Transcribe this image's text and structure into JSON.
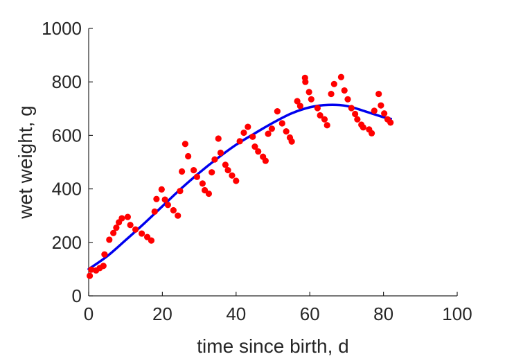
{
  "chart_data": {
    "type": "scatter",
    "title": "",
    "xlabel": "time since birth, d",
    "ylabel": "wet weight, g",
    "xlim": [
      0,
      100
    ],
    "ylim": [
      0,
      1000
    ],
    "xticks": [
      0,
      20,
      40,
      60,
      80,
      100
    ],
    "yticks": [
      0,
      200,
      400,
      600,
      800,
      1000
    ],
    "grid": false,
    "legend": "none",
    "series": [
      {
        "kind": "scatter",
        "color": "#ff0000",
        "x": [
          0.3,
          0.7,
          2,
          3,
          4,
          4.3,
          5.6,
          6.7,
          7.5,
          8.2,
          9,
          10.6,
          11.3,
          12.7,
          14.4,
          15.9,
          17,
          17.9,
          18.4,
          19.8,
          20.7,
          21.5,
          23,
          24.2,
          24.8,
          25.3,
          26.2,
          27,
          28.5,
          29.4,
          30.9,
          31.5,
          32.6,
          33.4,
          34.2,
          35.2,
          35.8,
          37.1,
          37.8,
          38.9,
          40,
          41,
          42.1,
          43.2,
          44.5,
          45.1,
          46,
          47.3,
          48,
          48.7,
          49.7,
          51.2,
          52.5,
          53.6,
          54.6,
          55.1,
          56.6,
          57.4,
          58.7,
          58.8,
          59.8,
          60.4,
          62.1,
          62.8,
          64,
          64.7,
          65.8,
          66.6,
          68.5,
          69.4,
          70.3,
          71.3,
          72.3,
          72.9,
          74,
          74.5,
          76.1,
          76.8,
          77.5,
          78.7,
          79.3,
          80.2,
          81.1,
          81.9
        ],
        "y": [
          75,
          98,
          95,
          104,
          112,
          155,
          210,
          235,
          255,
          275,
          290,
          295,
          265,
          248,
          233,
          220,
          207,
          315,
          362,
          398,
          360,
          340,
          320,
          300,
          392,
          465,
          568,
          522,
          470,
          445,
          420,
          395,
          382,
          462,
          510,
          588,
          535,
          490,
          470,
          450,
          430,
          578,
          610,
          632,
          595,
          558,
          540,
          520,
          505,
          606,
          625,
          690,
          645,
          615,
          592,
          577,
          728,
          710,
          815,
          800,
          762,
          735,
          702,
          675,
          660,
          638,
          755,
          792,
          818,
          768,
          735,
          702,
          680,
          660,
          640,
          630,
          622,
          608,
          692,
          755,
          712,
          682,
          660,
          648
        ]
      },
      {
        "kind": "line",
        "color": "#0000ee",
        "x": [
          0,
          5,
          10,
          15,
          20,
          25,
          30,
          35,
          40,
          45,
          50,
          55,
          60,
          65,
          70,
          75,
          80,
          82
        ],
        "y": [
          100,
          148,
          208,
          270,
          335,
          400,
          460,
          515,
          565,
          607,
          647,
          682,
          705,
          714,
          710,
          690,
          668,
          662
        ]
      }
    ]
  }
}
